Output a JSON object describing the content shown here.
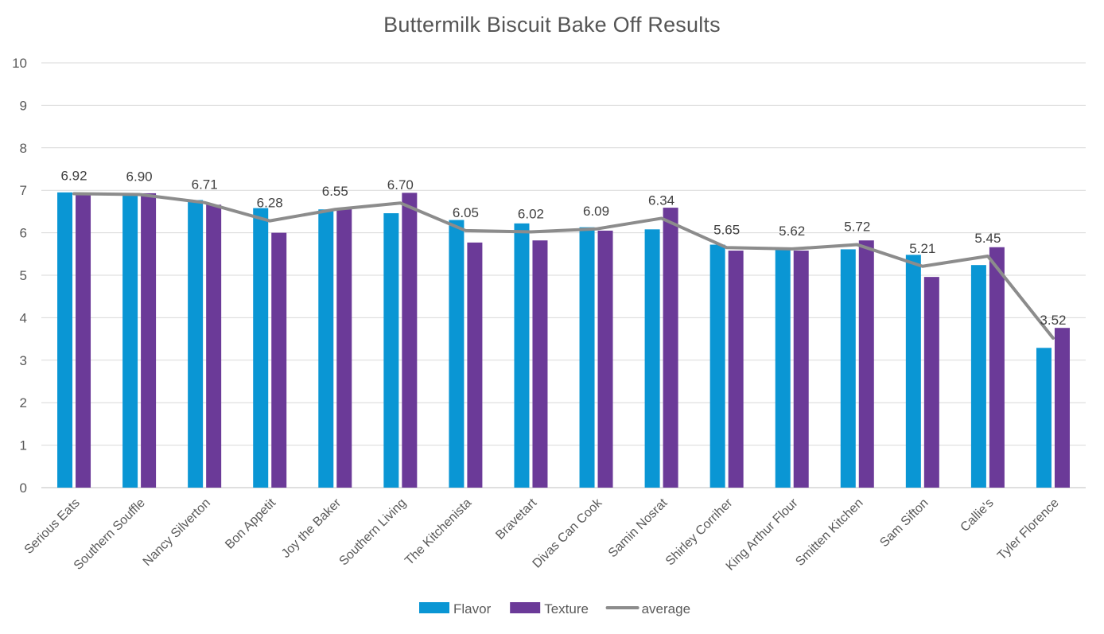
{
  "chart_data": {
    "type": "bar",
    "title": "Buttermilk Biscuit Bake Off Results",
    "xlabel": "",
    "ylabel": "",
    "ylim": [
      0,
      10
    ],
    "yticks": [
      "0",
      "1",
      "2",
      "3",
      "4",
      "5",
      "6",
      "7",
      "8",
      "9",
      "10"
    ],
    "grid": true,
    "legend_position": "bottom",
    "categories": [
      "Serious Eats",
      "Southern Souffle",
      "Nancy Silverton",
      "Bon Appetit",
      "Joy the Baker",
      "Southern Living",
      "The Kitchenista",
      "Bravetart",
      "Divas Can Cook",
      "Samin Nosrat",
      "Shirley Corriher",
      "King Arthur Flour",
      "Smitten Kitchen",
      "Sam Sifton",
      "Callie's",
      "Tyler Florence"
    ],
    "series": [
      {
        "name": "Flavor",
        "type": "bar",
        "color": "#0a96d4",
        "values": [
          6.95,
          6.88,
          6.77,
          6.58,
          6.55,
          6.46,
          6.3,
          6.22,
          6.13,
          6.08,
          5.72,
          5.65,
          5.61,
          5.48,
          5.24,
          3.29
        ]
      },
      {
        "name": "Texture",
        "type": "bar",
        "color": "#6b3a98",
        "values": [
          6.9,
          6.93,
          6.66,
          6.0,
          6.56,
          6.94,
          5.77,
          5.82,
          6.05,
          6.59,
          5.58,
          5.58,
          5.82,
          4.96,
          5.66,
          3.76
        ]
      },
      {
        "name": "average",
        "type": "line",
        "color": "#8c8c8c",
        "values": [
          6.92,
          6.9,
          6.71,
          6.28,
          6.55,
          6.7,
          6.05,
          6.02,
          6.09,
          6.34,
          5.65,
          5.62,
          5.72,
          5.21,
          5.45,
          3.52
        ],
        "labels": [
          "6.92",
          "6.90",
          "6.71",
          "6.28",
          "6.55",
          "6.70",
          "6.05",
          "6.02",
          "6.09",
          "6.34",
          "5.65",
          "5.62",
          "5.72",
          "5.21",
          "5.45",
          "3.52"
        ]
      }
    ]
  }
}
